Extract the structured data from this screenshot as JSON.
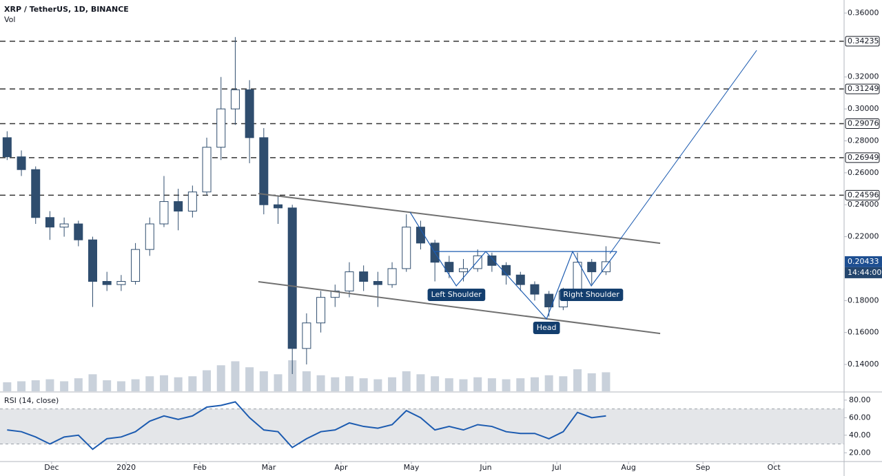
{
  "chart_data": {
    "type": "candlestick",
    "title": "XRP / TetherUS, 1D, BINANCE",
    "volume_label": "Vol",
    "xlim": [
      -0.5,
      58.7
    ],
    "xticks": [
      {
        "value": 3.12,
        "label": "Dec"
      },
      {
        "value": 8.35,
        "label": "2020"
      },
      {
        "value": 13.52,
        "label": "Feb"
      },
      {
        "value": 18.35,
        "label": "Mar"
      },
      {
        "value": 23.42,
        "label": "Apr"
      },
      {
        "value": 28.35,
        "label": "May"
      },
      {
        "value": 33.57,
        "label": "Jun"
      },
      {
        "value": 38.55,
        "label": "Jul"
      },
      {
        "value": 43.58,
        "label": "Aug"
      },
      {
        "value": 48.8,
        "label": "Sep"
      },
      {
        "value": 53.78,
        "label": "Oct"
      }
    ],
    "ylim": [
      0.1232,
      0.3682
    ],
    "yticks": [
      {
        "value": 0.36,
        "label": "0.36000"
      },
      {
        "value": 0.32,
        "label": "0.32000"
      },
      {
        "value": 0.3,
        "label": "0.30000"
      },
      {
        "value": 0.28,
        "label": "0.28000"
      },
      {
        "value": 0.26,
        "label": "0.26000"
      },
      {
        "value": 0.24,
        "label": "0.24000"
      },
      {
        "value": 0.22,
        "label": "0.22000"
      },
      {
        "value": 0.18,
        "label": "0.18000"
      },
      {
        "value": 0.16,
        "label": "0.16000"
      },
      {
        "value": 0.14,
        "label": "0.14000"
      }
    ],
    "colors": {
      "up": "#ffffff",
      "down": "#2f4d6e",
      "wick": "#2f4d6e",
      "volume": "#c9d1db",
      "rsi": "#1c5bb0",
      "channel": "#707070",
      "pattern": "#1c5bb0",
      "price_label": "#1e4f91"
    },
    "open": [
      0.282,
      0.27,
      0.262,
      0.232,
      0.226,
      0.228,
      0.218,
      0.192,
      0.19,
      0.192,
      0.212,
      0.228,
      0.242,
      0.236,
      0.248,
      0.276,
      0.3,
      0.312,
      0.282,
      0.24,
      0.238,
      0.15,
      0.166,
      0.182,
      0.186,
      0.198,
      0.192,
      0.19,
      0.2,
      0.226,
      0.216,
      0.204,
      0.198,
      0.2,
      0.208,
      0.202,
      0.196,
      0.19,
      0.184,
      0.176,
      0.186,
      0.204,
      0.198
    ],
    "high": [
      0.286,
      0.274,
      0.264,
      0.236,
      0.232,
      0.23,
      0.22,
      0.198,
      0.196,
      0.216,
      0.232,
      0.258,
      0.25,
      0.252,
      0.282,
      0.32,
      0.345,
      0.318,
      0.288,
      0.246,
      0.24,
      0.172,
      0.186,
      0.19,
      0.204,
      0.202,
      0.198,
      0.204,
      0.234,
      0.23,
      0.218,
      0.208,
      0.206,
      0.212,
      0.21,
      0.204,
      0.198,
      0.192,
      0.186,
      0.188,
      0.21,
      0.206,
      0.214
    ],
    "low": [
      0.268,
      0.258,
      0.228,
      0.218,
      0.22,
      0.214,
      0.176,
      0.186,
      0.186,
      0.19,
      0.208,
      0.226,
      0.224,
      0.232,
      0.246,
      0.268,
      0.29,
      0.266,
      0.234,
      0.228,
      0.134,
      0.14,
      0.16,
      0.176,
      0.182,
      0.186,
      0.176,
      0.188,
      0.198,
      0.212,
      0.192,
      0.194,
      0.192,
      0.198,
      0.198,
      0.19,
      0.186,
      0.18,
      0.17,
      0.174,
      0.184,
      0.19,
      0.196
    ],
    "close": [
      0.27,
      0.262,
      0.232,
      0.226,
      0.228,
      0.218,
      0.192,
      0.19,
      0.192,
      0.212,
      0.228,
      0.242,
      0.236,
      0.248,
      0.276,
      0.3,
      0.312,
      0.282,
      0.24,
      0.238,
      0.15,
      0.166,
      0.182,
      0.186,
      0.198,
      0.192,
      0.19,
      0.2,
      0.226,
      0.216,
      0.204,
      0.198,
      0.2,
      0.208,
      0.202,
      0.196,
      0.19,
      0.184,
      0.176,
      0.186,
      0.204,
      0.198,
      0.20433
    ],
    "volume": [
      18,
      20,
      22,
      24,
      20,
      26,
      34,
      22,
      20,
      24,
      30,
      32,
      28,
      30,
      42,
      52,
      60,
      48,
      40,
      34,
      62,
      40,
      32,
      28,
      30,
      26,
      24,
      28,
      40,
      34,
      30,
      26,
      24,
      28,
      26,
      24,
      26,
      28,
      32,
      30,
      44,
      36,
      38
    ],
    "last_price_label": "0.20433",
    "countdown": "14:44:00",
    "levels": [
      {
        "value": 0.34235,
        "label": "0.34235"
      },
      {
        "value": 0.31249,
        "label": "0.31249"
      },
      {
        "value": 0.29076,
        "label": "0.29076"
      },
      {
        "value": 0.26949,
        "label": "0.26949"
      },
      {
        "value": 0.24596,
        "label": "0.24596"
      }
    ],
    "channel": [
      [
        [
          17.62,
          0.247
        ],
        [
          45.8,
          0.2159
        ]
      ],
      [
        [
          17.62,
          0.1918
        ],
        [
          45.8,
          0.1594
        ]
      ]
    ],
    "projection": [
      [
        42.27,
        0.2094
      ],
      [
        52.57,
        0.3367
      ]
    ],
    "neckline": [
      [
        29.95,
        0.2107
      ],
      [
        42.76,
        0.2107
      ]
    ],
    "zigzag": [
      [
        28.26,
        0.2353
      ],
      [
        29.95,
        0.2107
      ],
      [
        31.5,
        0.1892
      ],
      [
        33.57,
        0.2107
      ],
      [
        37.83,
        0.1685
      ],
      [
        39.66,
        0.2107
      ],
      [
        40.97,
        0.1892
      ],
      [
        42.76,
        0.2107
      ]
    ],
    "annotations": [
      "Left Shoulder",
      "Head",
      "Right Shoulder"
    ],
    "rsi": {
      "title": "RSI (14, close)",
      "ylim": [
        10,
        88.5
      ],
      "yticks": [
        {
          "value": 80,
          "label": "80.00"
        },
        {
          "value": 60,
          "label": "60.00"
        },
        {
          "value": 40,
          "label": "40.00"
        },
        {
          "value": 20,
          "label": "20.00"
        }
      ],
      "band": [
        30,
        70
      ],
      "values": [
        46,
        44,
        38,
        30,
        38,
        40,
        24,
        36,
        38,
        44,
        56,
        62,
        58,
        62,
        72,
        74,
        78,
        60,
        46,
        44,
        26,
        36,
        44,
        46,
        54,
        50,
        48,
        52,
        68,
        60,
        46,
        50,
        46,
        52,
        50,
        44,
        42,
        42,
        36,
        44,
        66,
        60,
        62
      ]
    }
  }
}
